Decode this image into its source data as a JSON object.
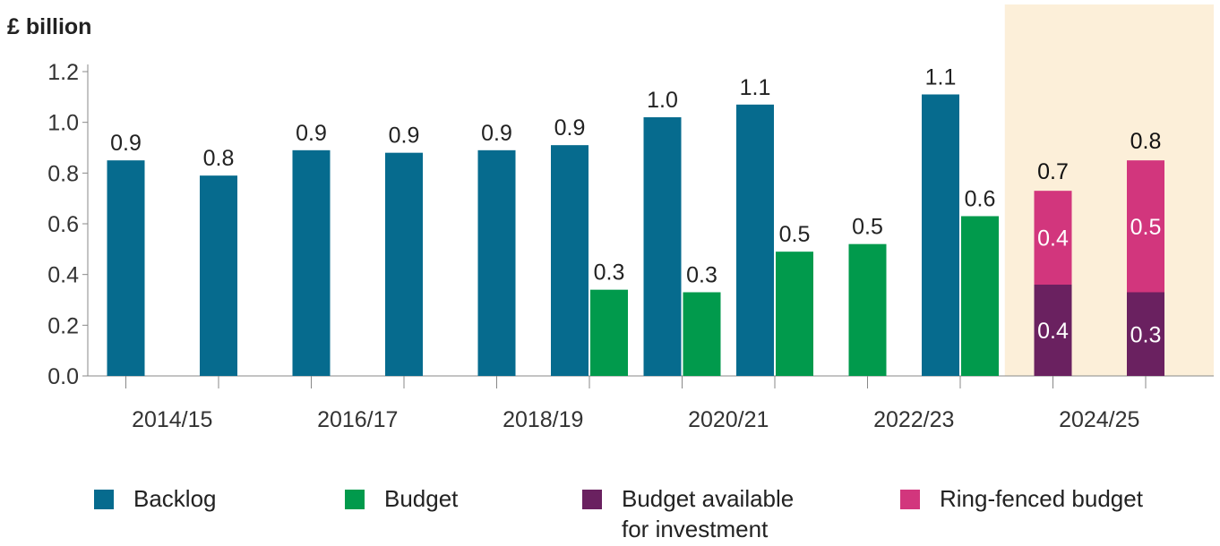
{
  "chart_data": {
    "type": "bar",
    "unit_label": "£ billion",
    "ylim": [
      0,
      1.2
    ],
    "yticks": [
      "0.0",
      "0.2",
      "0.4",
      "0.6",
      "0.8",
      "1.0",
      "1.2"
    ],
    "year_labels": [
      "2014/15",
      "2016/17",
      "2018/19",
      "2020/21",
      "2022/23",
      "2024/25"
    ],
    "highlight_last_two_years": true,
    "colors": {
      "backlog": "#066b8e",
      "budget": "#019a4c",
      "available": "#6a2160",
      "ringfenced": "#d2367d",
      "highlight": "#fcefd9"
    },
    "series": [
      {
        "name": "Backlog",
        "key": "backlog",
        "values": [
          0.85,
          0.79,
          0.89,
          0.88,
          0.89,
          0.91,
          1.02,
          1.07,
          null,
          1.11,
          null,
          null
        ],
        "labels": [
          "0.9",
          "0.8",
          "0.9",
          "0.9",
          "0.9",
          "0.9",
          "1.0",
          "1.1",
          "",
          "1.1",
          "",
          ""
        ]
      },
      {
        "name": "Budget",
        "key": "budget",
        "values": [
          null,
          null,
          null,
          null,
          null,
          0.34,
          0.33,
          0.49,
          0.52,
          0.63,
          null,
          null
        ],
        "labels": [
          "",
          "",
          "",
          "",
          "",
          "0.3",
          "0.3",
          "0.5",
          "0.5",
          "0.6",
          "",
          ""
        ]
      },
      {
        "name": "Budget available\nfor investment",
        "key": "available",
        "values": [
          null,
          null,
          null,
          null,
          null,
          null,
          null,
          null,
          null,
          null,
          0.36,
          0.33
        ],
        "labels": [
          "",
          "",
          "",
          "",
          "",
          "",
          "",
          "",
          "",
          "",
          "0.4",
          "0.3"
        ]
      },
      {
        "name": "Ring-fenced budget",
        "key": "ringfenced",
        "values": [
          null,
          null,
          null,
          null,
          null,
          null,
          null,
          null,
          null,
          null,
          0.37,
          0.52
        ],
        "labels": [
          "",
          "",
          "",
          "",
          "",
          "",
          "",
          "",
          "",
          "",
          "0.4",
          "0.5"
        ]
      }
    ],
    "stack_totals": [
      "0.7",
      "0.8"
    ],
    "legend": [
      {
        "key": "backlog",
        "label": "Backlog"
      },
      {
        "key": "budget",
        "label": "Budget"
      },
      {
        "key": "available",
        "label": "Budget available\nfor investment"
      },
      {
        "key": "ringfenced",
        "label": "Ring-fenced budget"
      }
    ]
  }
}
